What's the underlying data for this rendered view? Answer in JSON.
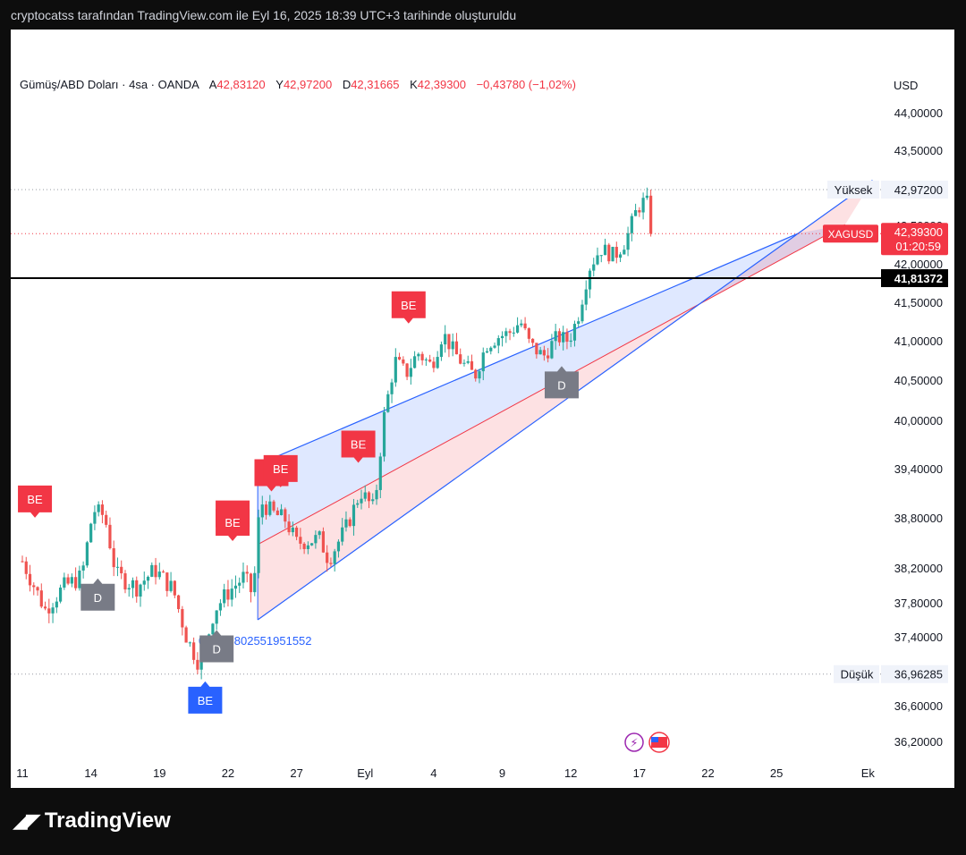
{
  "caption": "cryptocatss tarafından TradingView.com ile Eyl 16, 2025 18:39 UTC+3 tarihinde oluşturuldu",
  "legend": {
    "symbol_desc": "Gümüş/ABD Doları · 4sa · OANDA",
    "open_label": "A",
    "open": "42,83120",
    "high_label": "Y",
    "high": "42,97200",
    "low_label": "D",
    "low": "42,31665",
    "close_label": "K",
    "close": "42,39300",
    "change": "−0,43780 (−1,02%)"
  },
  "currency": "USD",
  "brand": "TradingView",
  "colors": {
    "up": "#26a69a",
    "down": "#ef5350",
    "channel_line": "#2962ff",
    "channel_mid": "#f23645",
    "support": "#000000",
    "signal_sell": "#f23645",
    "signal_buy": "#2962ff",
    "signal_neutral": "#787b86"
  },
  "chart_data": {
    "type": "candlestick",
    "y_ticks": [
      {
        "v": 44.0,
        "label": "44,00000"
      },
      {
        "v": 43.5,
        "label": "43,50000"
      },
      {
        "v": 42.5,
        "label": "42,50000"
      },
      {
        "v": 42.0,
        "label": "42,00000"
      },
      {
        "v": 41.5,
        "label": "41,50000"
      },
      {
        "v": 41.0,
        "label": "41,00000"
      },
      {
        "v": 40.5,
        "label": "40,50000"
      },
      {
        "v": 40.0,
        "label": "40,00000"
      },
      {
        "v": 39.4,
        "label": "39,40000"
      },
      {
        "v": 38.8,
        "label": "38,80000"
      },
      {
        "v": 38.2,
        "label": "38,20000"
      },
      {
        "v": 37.8,
        "label": "37,80000"
      },
      {
        "v": 37.4,
        "label": "37,40000"
      },
      {
        "v": 36.6,
        "label": "36,60000"
      },
      {
        "v": 36.2,
        "label": "36,20000"
      }
    ],
    "x_ticks": [
      {
        "d": 0,
        "label": "11"
      },
      {
        "d": 3,
        "label": "14"
      },
      {
        "d": 6,
        "label": "19"
      },
      {
        "d": 9,
        "label": "22"
      },
      {
        "d": 12,
        "label": "27"
      },
      {
        "d": 15,
        "label": "Eyl"
      },
      {
        "d": 18,
        "label": "4"
      },
      {
        "d": 21,
        "label": "9"
      },
      {
        "d": 24,
        "label": "12"
      },
      {
        "d": 27,
        "label": "17"
      },
      {
        "d": 30,
        "label": "22"
      },
      {
        "d": 33,
        "label": "25"
      },
      {
        "d": 37,
        "label": "Ek"
      }
    ],
    "high_marker": {
      "label": "Yüksek",
      "value": 42.972,
      "text": "42,97200"
    },
    "low_marker": {
      "label": "Düşük",
      "value": 36.96285,
      "text": "36,96285"
    },
    "current_price": {
      "symbol": "XAGUSD",
      "value": 42.393,
      "text": "42,39300",
      "countdown": "01:20:59"
    },
    "support_line": {
      "value": 41.81372,
      "text": "41,81372"
    },
    "channel": {
      "upper": [
        [
          10.3,
          39.45
        ],
        [
          31.3,
          44.9
        ]
      ],
      "middle": [
        [
          10.3,
          38.48
        ],
        [
          34.2,
          45.0
        ]
      ],
      "lower": [
        [
          10.3,
          37.6
        ],
        [
          37.2,
          44.9
        ]
      ]
    },
    "annotation_value": "0,5353802551951552",
    "signals": [
      {
        "type": "BE",
        "d": 0.55,
        "price": 38.78
      },
      {
        "type": "D",
        "d": 3.3,
        "price": 38.1
      },
      {
        "type": "BE",
        "d": 9.2,
        "price": 38.6
      },
      {
        "type": "D",
        "d": 8.5,
        "price": 37.5
      },
      {
        "type": "BE",
        "d": 9.2,
        "price": 38.5
      },
      {
        "type": "BE",
        "d": 10.9,
        "price": 39.1
      },
      {
        "type": "BE",
        "d": 11.3,
        "price": 39.15
      },
      {
        "type": "BE",
        "d": 14.7,
        "price": 39.45
      },
      {
        "type": "BE",
        "d": 16.9,
        "price": 41.2
      },
      {
        "type": "D",
        "d": 23.6,
        "price": 40.7
      },
      {
        "type": "BE",
        "d": 8.0,
        "price": 36.9,
        "buy": true
      }
    ],
    "waypoints": [
      [
        0.0,
        38.28
      ],
      [
        1.0,
        37.72
      ],
      [
        1.8,
        37.98
      ],
      [
        2.6,
        38.1
      ],
      [
        3.1,
        38.9
      ],
      [
        3.6,
        38.82
      ],
      [
        4.1,
        38.12
      ],
      [
        5.0,
        37.98
      ],
      [
        5.8,
        38.18
      ],
      [
        6.6,
        37.95
      ],
      [
        7.2,
        37.38
      ],
      [
        7.8,
        37.05
      ],
      [
        8.4,
        37.72
      ],
      [
        9.0,
        37.92
      ],
      [
        9.7,
        38.1
      ],
      [
        10.1,
        37.88
      ],
      [
        10.4,
        39.0
      ],
      [
        11.0,
        38.85
      ],
      [
        11.5,
        38.78
      ],
      [
        12.0,
        38.5
      ],
      [
        13.0,
        38.55
      ],
      [
        13.4,
        38.3
      ],
      [
        14.2,
        38.7
      ],
      [
        14.8,
        39.12
      ],
      [
        15.4,
        38.9
      ],
      [
        15.8,
        40.0
      ],
      [
        16.3,
        40.75
      ],
      [
        16.8,
        40.58
      ],
      [
        17.3,
        40.85
      ],
      [
        17.9,
        40.68
      ],
      [
        18.4,
        41.1
      ],
      [
        18.9,
        40.85
      ],
      [
        19.3,
        40.7
      ],
      [
        19.8,
        40.55
      ],
      [
        20.3,
        40.95
      ],
      [
        20.8,
        41.05
      ],
      [
        21.3,
        41.1
      ],
      [
        21.8,
        41.25
      ],
      [
        22.2,
        40.95
      ],
      [
        22.8,
        40.8
      ],
      [
        23.4,
        41.05
      ],
      [
        23.9,
        41.0
      ],
      [
        24.3,
        41.3
      ],
      [
        24.8,
        41.95
      ],
      [
        25.3,
        42.2
      ],
      [
        25.9,
        42.1
      ],
      [
        26.4,
        42.3
      ],
      [
        26.9,
        42.72
      ],
      [
        27.3,
        42.85
      ],
      [
        27.55,
        42.39
      ]
    ]
  }
}
